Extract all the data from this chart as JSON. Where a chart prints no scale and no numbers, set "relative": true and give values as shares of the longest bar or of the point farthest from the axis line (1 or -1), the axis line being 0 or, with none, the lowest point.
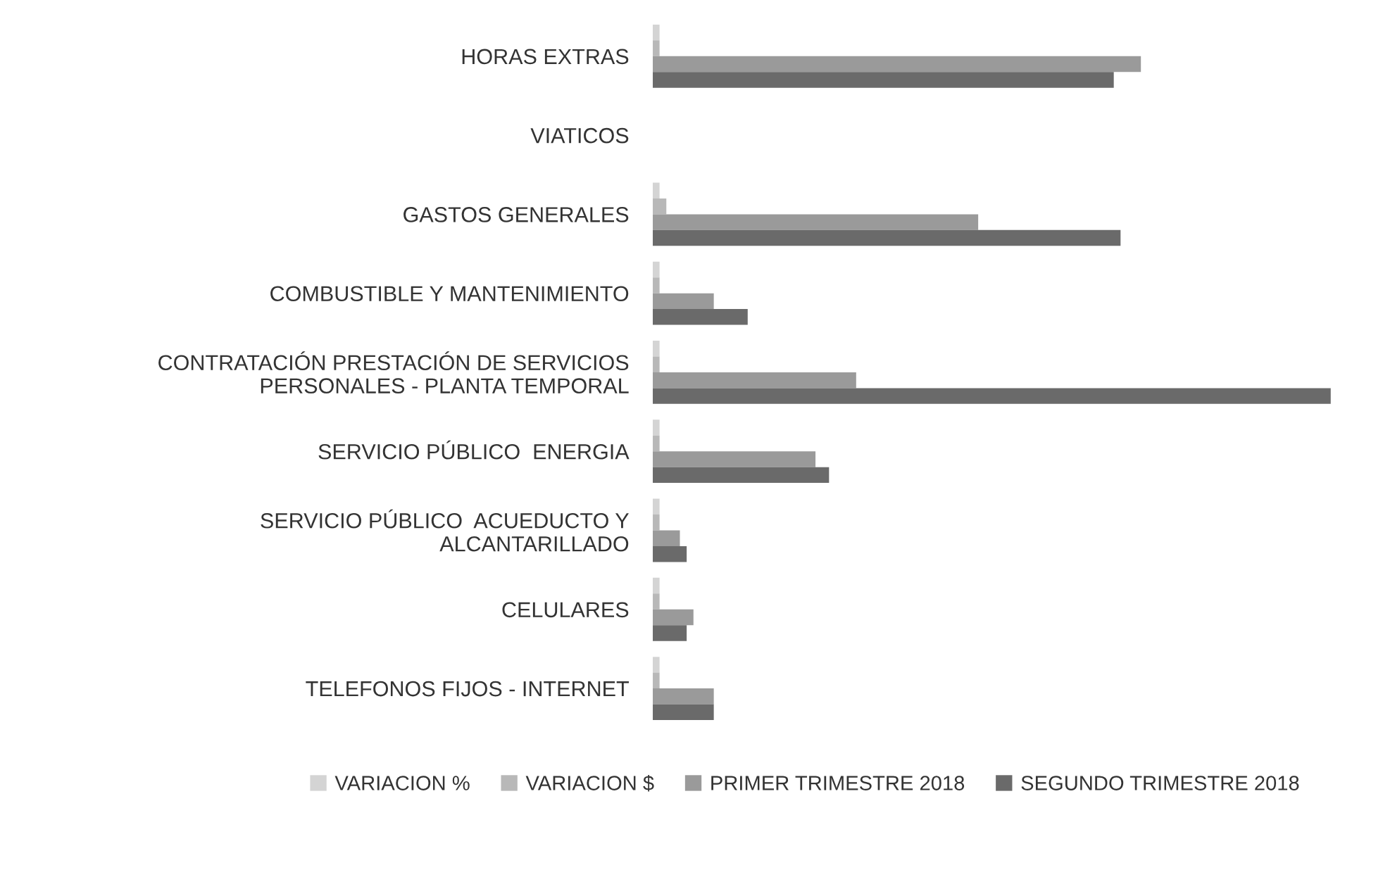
{
  "chart_data": {
    "type": "bar",
    "orientation": "horizontal",
    "relative": true,
    "legend": "bottom",
    "categories": [
      "HORAS EXTRAS",
      "VIATICOS",
      "GASTOS GENERALES",
      "COMBUSTIBLE Y MANTENIMIENTO",
      "CONTRATACIÓN PRESTACIÓN DE SERVICIOS\nPERSONALES - PLANTA TEMPORAL",
      "SERVICIO PÚBLICO  ENERGIA",
      "SERVICIO PÚBLICO  ACUEDUCTO Y\nALCANTARILLADO",
      "CELULARES",
      "TELEFONOS FIJOS - INTERNET"
    ],
    "series": [
      {
        "name": "VARIACION %",
        "color": "#d4d4d4",
        "values": [
          0.01,
          0,
          0.01,
          0.01,
          0.01,
          0.01,
          0.01,
          0.01,
          0.01
        ]
      },
      {
        "name": "VARIACION $",
        "color": "#b8b8b8",
        "values": [
          0.01,
          0,
          0.02,
          0.01,
          0.01,
          0.01,
          0.01,
          0.01,
          0.01
        ]
      },
      {
        "name": "PRIMER TRIMESTRE 2018",
        "color": "#9a9a9a",
        "values": [
          0.72,
          0,
          0.48,
          0.09,
          0.3,
          0.24,
          0.04,
          0.06,
          0.09
        ]
      },
      {
        "name": "SEGUNDO TRIMESTRE 2018",
        "color": "#6a6a6a",
        "values": [
          0.68,
          0,
          0.69,
          0.14,
          1,
          0.26,
          0.05,
          0.05,
          0.09
        ]
      }
    ]
  }
}
